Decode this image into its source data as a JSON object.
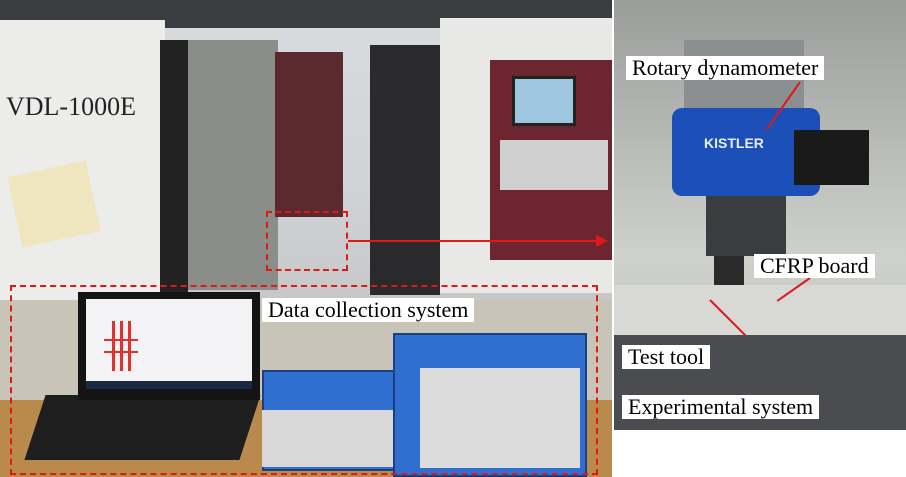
{
  "labels": {
    "machine_model": "VDL-1000E",
    "data_collection": "Data collection system",
    "rotary_dynamometer": "Rotary dynamometer",
    "cfrp_board": "CFRP board",
    "test_tool": "Test tool",
    "experimental_system": "Experimental  system",
    "kistler": "KISTLER"
  },
  "colors": {
    "annotation": "#e01818",
    "dynamometer_blue": "#1d4fb8",
    "daq_blue": "#2f6fd0"
  }
}
